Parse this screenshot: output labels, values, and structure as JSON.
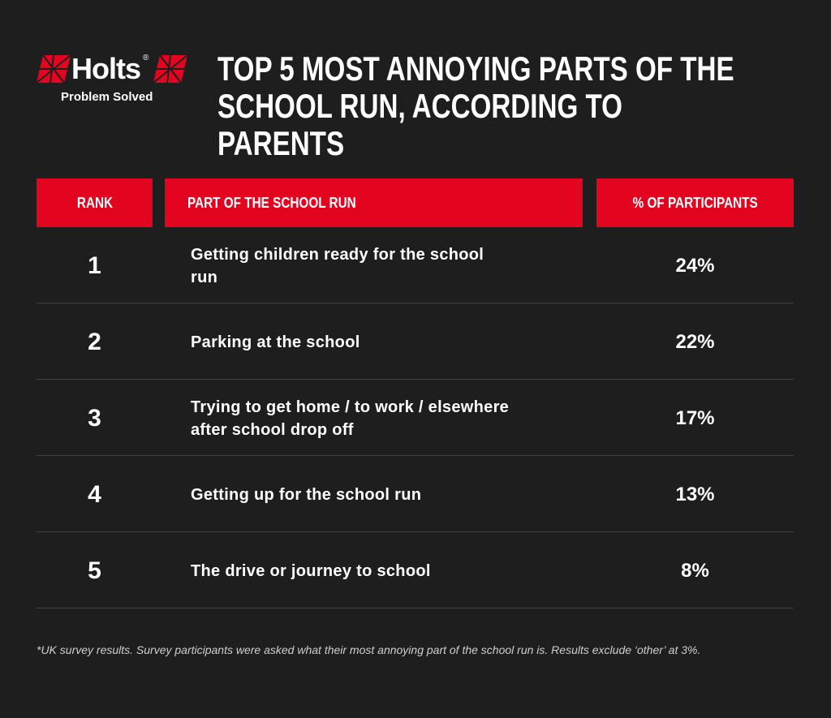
{
  "logo": {
    "brand": "Holts",
    "mark": "®",
    "tagline": "Problem Solved"
  },
  "title": "TOP 5 MOST ANNOYING PARTS OF THE SCHOOL RUN, ACCORDING TO PARENTS",
  "table": {
    "header": [
      "RANK",
      "PART OF THE SCHOOL RUN",
      "% OF PARTICIPANTS"
    ],
    "rows": [
      [
        "1",
        "Getting children ready for the school run",
        "24%"
      ],
      [
        "2",
        "Parking at the school",
        "22%"
      ],
      [
        "3",
        "Trying to get home / to work / elsewhere after school drop off",
        "17%"
      ],
      [
        "4",
        "Getting up for the school run",
        "13%"
      ],
      [
        "5",
        "The drive or journey to school",
        "8%"
      ]
    ]
  },
  "footnote": "*UK survey results. Survey participants were asked what their most annoying part of the school run is. Results exclude ‘other’ at 3%."
}
